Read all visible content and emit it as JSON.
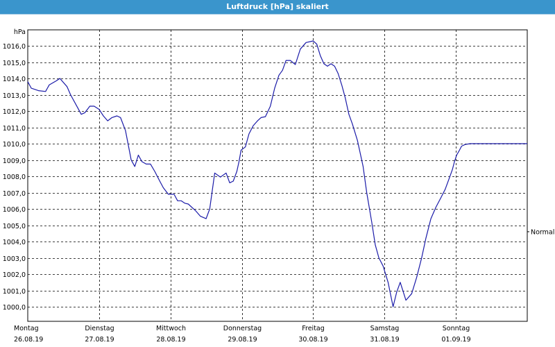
{
  "window": {
    "title": "Luftdruck [hPa] skaliert"
  },
  "chart_data": {
    "type": "line",
    "title": "Luftdruck [hPa] skaliert",
    "ylabel": "hPa",
    "xlabel": "",
    "ylim": [
      999.0,
      1017.0
    ],
    "xlim": [
      0,
      7
    ],
    "grid": true,
    "y_ticks": [
      1000.0,
      1001.0,
      1002.0,
      1003.0,
      1004.0,
      1005.0,
      1006.0,
      1007.0,
      1008.0,
      1009.0,
      1010.0,
      1011.0,
      1012.0,
      1013.0,
      1014.0,
      1015.0,
      1016.0
    ],
    "y_tick_labels": [
      "1000,0",
      "1001,0",
      "1002,0",
      "1003,0",
      "1004,0",
      "1005,0",
      "1006,0",
      "1007,0",
      "1008,0",
      "1009,0",
      "1010,0",
      "1011,0",
      "1012,0",
      "1013,0",
      "1014,0",
      "1015,0",
      "1016,0"
    ],
    "x_ticks": [
      {
        "day": "Montag",
        "date": "26.08.19"
      },
      {
        "day": "Dienstag",
        "date": "27.08.19"
      },
      {
        "day": "Mittwoch",
        "date": "28.08.19"
      },
      {
        "day": "Donnerstag",
        "date": "29.08.19"
      },
      {
        "day": "Freitag",
        "date": "30.08.19"
      },
      {
        "day": "Samstag",
        "date": "31.08.19"
      },
      {
        "day": "Sonntag",
        "date": "01.09.19"
      }
    ],
    "reference_label": "Normal",
    "reference_value": 1004.6,
    "colors": {
      "line": "#1a1aa8",
      "grid": "#000000",
      "title_bar": "#3a95cc"
    },
    "series": [
      {
        "x": [
          0,
          0.05,
          0.15,
          0.25,
          0.3,
          0.4,
          0.45,
          0.55,
          0.6,
          0.7,
          0.75,
          0.8,
          0.87,
          0.93,
          1.0,
          1.06,
          1.12,
          1.18,
          1.25,
          1.3,
          1.37,
          1.45,
          1.5,
          1.55,
          1.6,
          1.66,
          1.72,
          1.78,
          1.85,
          1.9,
          1.97,
          2.05,
          2.1,
          2.15,
          2.2,
          2.25,
          2.35,
          2.42,
          2.5,
          2.55,
          2.62,
          2.7,
          2.78,
          2.83,
          2.88,
          2.93,
          2.96,
          2.99,
          3.05,
          3.1,
          3.16,
          3.22,
          3.27,
          3.33,
          3.4,
          3.46,
          3.52,
          3.57,
          3.62,
          3.68,
          3.75,
          3.82,
          3.9,
          4.0,
          4.05,
          4.1,
          4.15,
          4.2,
          4.25,
          4.3,
          4.35,
          4.4,
          4.45,
          4.5,
          4.55,
          4.62,
          4.7,
          4.75,
          4.82,
          4.87,
          4.92,
          4.98,
          5.05,
          5.12,
          5.17,
          5.22,
          5.3,
          5.38,
          5.45,
          5.52,
          5.58,
          5.65,
          5.72,
          5.78,
          5.85,
          5.9,
          5.95,
          5.98,
          6.01,
          6.05,
          6.08,
          6.13,
          6.2,
          6.28,
          6.35,
          6.42,
          6.5,
          6.58,
          6.65,
          6.72,
          6.78,
          6.85,
          6.92,
          7.0
        ],
        "values": [
          1013.8,
          1013.4,
          1013.25,
          1013.2,
          1013.6,
          1013.85,
          1014.0,
          1013.5,
          1013.0,
          1012.2,
          1011.8,
          1011.9,
          1012.3,
          1012.3,
          1012.1,
          1011.7,
          1011.4,
          1011.6,
          1011.7,
          1011.6,
          1010.8,
          1009.0,
          1008.6,
          1009.3,
          1008.9,
          1008.75,
          1008.75,
          1008.3,
          1007.7,
          1007.3,
          1006.9,
          1006.9,
          1006.5,
          1006.5,
          1006.35,
          1006.3,
          1005.9,
          1005.55,
          1005.4,
          1006.0,
          1008.2,
          1007.95,
          1008.2,
          1007.6,
          1007.7,
          1008.3,
          1008.9,
          1009.6,
          1009.8,
          1010.6,
          1011.1,
          1011.4,
          1011.6,
          1011.65,
          1012.3,
          1013.4,
          1014.2,
          1014.5,
          1015.1,
          1015.1,
          1014.85,
          1015.8,
          1016.2,
          1016.3,
          1016.1,
          1015.4,
          1014.9,
          1014.75,
          1014.9,
          1014.75,
          1014.3,
          1013.6,
          1012.8,
          1011.8,
          1011.2,
          1010.2,
          1008.6,
          1007.0,
          1005.2,
          1003.8,
          1003.0,
          1002.5,
          1001.5,
          1000.0,
          1000.9,
          1001.5,
          1000.4,
          1000.8,
          1001.8,
          1003.0,
          1004.2,
          1005.4,
          1006.1,
          1006.6,
          1007.2,
          1007.8,
          1008.4,
          1008.9,
          1009.3,
          1009.6,
          1009.85,
          1009.95,
          1010.0,
          1010.0,
          1010.0,
          1010.0,
          1010.0,
          1010.0,
          1010.0,
          1010.0,
          1010.0,
          1010.0,
          1010.0,
          1010.0
        ]
      }
    ]
  }
}
